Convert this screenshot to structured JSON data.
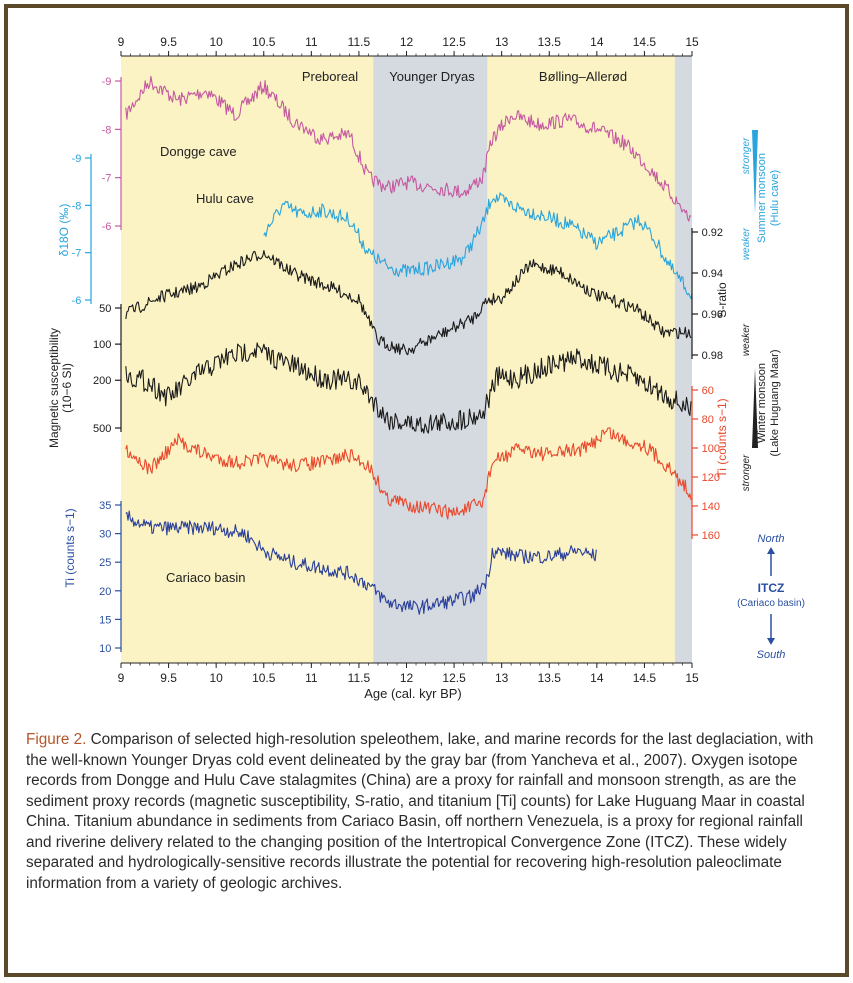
{
  "figure": {
    "caption_label": "Figure 2.",
    "caption_text": " Comparison of selected high-resolution speleothem, lake, and marine records for the last deglaciation, with the well-known Younger Dryas cold event delineated by the gray bar (from Yancheva et al., 2007). Oxygen isotope records from Dongge and Hulu Cave stalagmites (China) are a proxy for rainfall and monsoon strength, as are the sediment proxy records (magnetic susceptibility, S-ratio, and titanium [Ti] counts) for Lake Huguang Maar in coastal China. Titanium abundance in sediments from Cariaco Basin, off northern Venezuela, is a proxy for regional rainfall and riverine delivery related to the changing position of the Intertropical Convergence Zone (ITCZ). These widely separated and hydrologically-sensitive records illustrate the potential for recovering high-resolution paleoclimate information from a variety of geologic archives."
  },
  "colors": {
    "frame": "#5a4a2a",
    "yellow_band": "#fbf3c4",
    "gray_band": "#d5d9e0",
    "dongge": "#c45aa0",
    "hulu": "#2aa4dc",
    "black": "#1a1a1a",
    "ti_red": "#e8482c",
    "cariaco": "#2a3f9a",
    "axis_blue": "#2a4fa0",
    "caption_label": "#b2562a"
  },
  "chart_data": {
    "type": "line",
    "xlabel": "Age (cal. kyr BP)",
    "x_range": [
      9,
      15
    ],
    "x_ticks": [
      "9",
      "9.5",
      "10",
      "10.5",
      "11",
      "11.5",
      "12",
      "12.5",
      "13",
      "13.5",
      "14",
      "14.5",
      "15"
    ],
    "periods": [
      {
        "label": "Preboreal",
        "start": 9.0,
        "end": 11.65,
        "shade": "yellow"
      },
      {
        "label": "Younger Dryas",
        "start": 11.65,
        "end": 12.85,
        "shade": "gray"
      },
      {
        "label": "Bølling–Allerød",
        "start": 12.85,
        "end": 14.82,
        "shade": "yellow"
      },
      {
        "label": "",
        "start": 14.82,
        "end": 15.0,
        "shade": "gray"
      }
    ],
    "axes": {
      "dongge_ticks": [
        "-9",
        "-8",
        "-7",
        "-6"
      ],
      "hulu_ticks": [
        "-9",
        "-8",
        "-7",
        "-6"
      ],
      "d18o_label": "δ18O (‰)",
      "s_ratio_ticks": [
        "0.92",
        "0.94",
        "0.96",
        "0.98"
      ],
      "s_ratio_label": "S-ratio",
      "mag_ticks": [
        "50",
        "100",
        "200",
        "500"
      ],
      "mag_label_1": "Magnetic susceptibility",
      "mag_label_2": "(10−6 SI)",
      "ti_ticks": [
        "60",
        "80",
        "100",
        "120",
        "140",
        "160"
      ],
      "ti_label": "Ti (counts s−1)",
      "cariaco_ticks": [
        "35",
        "30",
        "25",
        "20",
        "15",
        "10"
      ],
      "cariaco_label": "Ti (counts s−1)"
    },
    "series": [
      {
        "name": "Dongge cave",
        "axis": "dongge",
        "range": [
          9.05,
          15.0
        ],
        "inverted": true,
        "points": [
          [
            9.05,
            -8.3
          ],
          [
            9.3,
            -9.0
          ],
          [
            9.6,
            -8.6
          ],
          [
            9.9,
            -8.8
          ],
          [
            10.2,
            -8.3
          ],
          [
            10.5,
            -8.9
          ],
          [
            10.8,
            -8.2
          ],
          [
            11.1,
            -7.8
          ],
          [
            11.4,
            -7.9
          ],
          [
            11.6,
            -7.0
          ],
          [
            11.8,
            -6.8
          ],
          [
            12.0,
            -6.9
          ],
          [
            12.3,
            -6.8
          ],
          [
            12.6,
            -6.7
          ],
          [
            12.8,
            -7.0
          ],
          [
            12.9,
            -7.8
          ],
          [
            13.1,
            -8.3
          ],
          [
            13.4,
            -8.1
          ],
          [
            13.7,
            -8.2
          ],
          [
            14.0,
            -8.0
          ],
          [
            14.3,
            -7.7
          ],
          [
            14.55,
            -7.2
          ],
          [
            14.8,
            -6.6
          ],
          [
            15.0,
            -6.1
          ]
        ]
      },
      {
        "name": "Hulu cave",
        "axis": "hulu",
        "range": [
          10.5,
          15.0
        ],
        "inverted": true,
        "points": [
          [
            10.5,
            -7.4
          ],
          [
            10.7,
            -8.0
          ],
          [
            10.9,
            -7.8
          ],
          [
            11.1,
            -7.9
          ],
          [
            11.4,
            -7.7
          ],
          [
            11.6,
            -7.0
          ],
          [
            11.8,
            -6.7
          ],
          [
            12.0,
            -6.6
          ],
          [
            12.3,
            -6.7
          ],
          [
            12.6,
            -6.9
          ],
          [
            12.8,
            -7.6
          ],
          [
            12.9,
            -8.2
          ],
          [
            13.1,
            -8.0
          ],
          [
            13.4,
            -7.8
          ],
          [
            13.7,
            -7.6
          ],
          [
            14.0,
            -7.2
          ],
          [
            14.2,
            -7.4
          ],
          [
            14.45,
            -7.7
          ],
          [
            14.6,
            -7.3
          ],
          [
            14.8,
            -6.6
          ],
          [
            15.0,
            -6.1
          ]
        ]
      },
      {
        "name": "",
        "axis": "s_ratio",
        "range": [
          9.05,
          15.0
        ],
        "inverted": true,
        "points": [
          [
            9.05,
            0.96
          ],
          [
            9.4,
            0.952
          ],
          [
            9.8,
            0.947
          ],
          [
            10.2,
            0.936
          ],
          [
            10.5,
            0.93
          ],
          [
            10.8,
            0.94
          ],
          [
            11.2,
            0.947
          ],
          [
            11.5,
            0.953
          ],
          [
            11.7,
            0.973
          ],
          [
            12.0,
            0.978
          ],
          [
            12.4,
            0.969
          ],
          [
            12.7,
            0.962
          ],
          [
            12.85,
            0.953
          ],
          [
            13.0,
            0.952
          ],
          [
            13.3,
            0.936
          ],
          [
            13.6,
            0.939
          ],
          [
            14.0,
            0.951
          ],
          [
            14.4,
            0.957
          ],
          [
            14.7,
            0.969
          ],
          [
            15.0,
            0.969
          ]
        ]
      },
      {
        "name": "",
        "axis": "mag",
        "range": [
          9.05,
          15.0
        ],
        "inverted": true,
        "points": [
          [
            9.05,
            180
          ],
          [
            9.3,
            210
          ],
          [
            9.5,
            280
          ],
          [
            9.8,
            180
          ],
          [
            10.1,
            130
          ],
          [
            10.4,
            110
          ],
          [
            10.7,
            140
          ],
          [
            11.1,
            190
          ],
          [
            11.5,
            210
          ],
          [
            11.8,
            420
          ],
          [
            12.1,
            470
          ],
          [
            12.5,
            440
          ],
          [
            12.8,
            380
          ],
          [
            12.95,
            190
          ],
          [
            13.2,
            190
          ],
          [
            13.5,
            150
          ],
          [
            13.8,
            130
          ],
          [
            14.1,
            160
          ],
          [
            14.4,
            190
          ],
          [
            14.7,
            260
          ],
          [
            15.0,
            360
          ]
        ]
      },
      {
        "name": "",
        "axis": "ti",
        "range": [
          9.05,
          15.0
        ],
        "inverted": true,
        "points": [
          [
            9.05,
            100
          ],
          [
            9.3,
            115
          ],
          [
            9.6,
            95
          ],
          [
            9.9,
            105
          ],
          [
            10.2,
            110
          ],
          [
            10.5,
            108
          ],
          [
            10.8,
            112
          ],
          [
            11.1,
            110
          ],
          [
            11.4,
            105
          ],
          [
            11.6,
            112
          ],
          [
            11.8,
            135
          ],
          [
            12.1,
            140
          ],
          [
            12.5,
            145
          ],
          [
            12.8,
            138
          ],
          [
            12.9,
            110
          ],
          [
            13.2,
            100
          ],
          [
            13.5,
            105
          ],
          [
            13.7,
            102
          ],
          [
            13.9,
            100
          ],
          [
            14.1,
            88
          ],
          [
            14.3,
            95
          ],
          [
            14.5,
            98
          ],
          [
            14.7,
            110
          ],
          [
            15.0,
            132
          ]
        ]
      },
      {
        "name": "Cariaco basin",
        "axis": "cariaco",
        "range": [
          9.05,
          14.0
        ],
        "inverted": false,
        "points": [
          [
            9.05,
            33
          ],
          [
            9.3,
            31
          ],
          [
            9.6,
            31
          ],
          [
            10.0,
            31
          ],
          [
            10.3,
            30
          ],
          [
            10.5,
            27
          ],
          [
            10.8,
            25
          ],
          [
            11.1,
            24
          ],
          [
            11.4,
            23
          ],
          [
            11.6,
            21
          ],
          [
            11.8,
            18
          ],
          [
            12.1,
            17
          ],
          [
            12.4,
            18
          ],
          [
            12.7,
            19
          ],
          [
            12.85,
            22
          ],
          [
            12.9,
            27
          ],
          [
            13.2,
            26
          ],
          [
            13.5,
            26
          ],
          [
            13.8,
            27
          ],
          [
            14.0,
            26
          ]
        ]
      }
    ],
    "annotations": [
      "Dongge cave",
      "Hulu cave",
      "Cariaco basin"
    ],
    "right_labels": {
      "summer_monsoon": "Summer monsoon",
      "hulu_cave": "(Hulu cave)",
      "stronger": "stronger",
      "weaker": "weaker",
      "winter_monsoon": "Winter monsoon",
      "lake_huguang": "(Lake Huguang Maar)",
      "winter_stronger": "stronger",
      "winter_weaker": "weaker",
      "north": "North",
      "south": "South",
      "itcz": "ITCZ",
      "itcz_sub": "(Cariaco basin)"
    }
  }
}
